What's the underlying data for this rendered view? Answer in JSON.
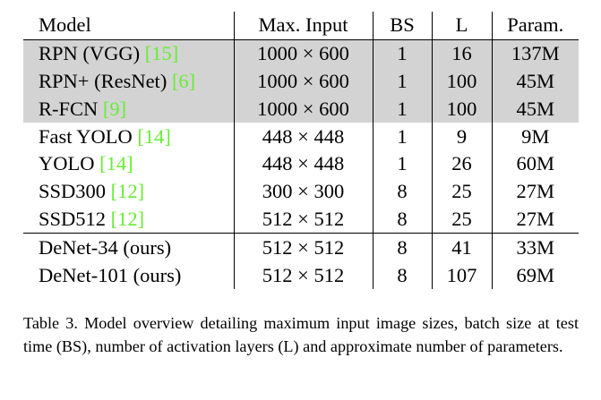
{
  "table": {
    "headers": {
      "model": "Model",
      "max_input": "Max. Input",
      "bs": "BS",
      "l": "L",
      "param": "Param."
    },
    "rows": [
      {
        "name": "RPN (VGG) ",
        "cite": "[15]",
        "max_input": "1000 × 600",
        "bs": "1",
        "l": "16",
        "param": "137M"
      },
      {
        "name": "RPN+ (ResNet) ",
        "cite": "[6]",
        "max_input": "1000 × 600",
        "bs": "1",
        "l": "100",
        "param": "45M"
      },
      {
        "name": "R-FCN ",
        "cite": "[9]",
        "max_input": "1000 × 600",
        "bs": "1",
        "l": "100",
        "param": "45M"
      },
      {
        "name": "Fast YOLO ",
        "cite": "[14]",
        "max_input": "448 × 448",
        "bs": "1",
        "l": "9",
        "param": "9M"
      },
      {
        "name": "YOLO ",
        "cite": "[14]",
        "max_input": "448 × 448",
        "bs": "1",
        "l": "26",
        "param": "60M"
      },
      {
        "name": "SSD300 ",
        "cite": "[12]",
        "max_input": "300 × 300",
        "bs": "8",
        "l": "25",
        "param": "27M"
      },
      {
        "name": "SSD512 ",
        "cite": "[12]",
        "max_input": "512 × 512",
        "bs": "8",
        "l": "25",
        "param": "27M"
      },
      {
        "name": "DeNet-34 (ours)",
        "cite": "",
        "max_input": "512 × 512",
        "bs": "8",
        "l": "41",
        "param": "33M"
      },
      {
        "name": "DeNet-101 (ours)",
        "cite": "",
        "max_input": "512 × 512",
        "bs": "8",
        "l": "107",
        "param": "69M"
      }
    ]
  },
  "caption": "Table 3. Model overview detailing maximum input image sizes, batch size at test time (BS), number of activation layers (L) and approximate number of parameters.",
  "colors": {
    "shade": "#d3d3d3",
    "citation": "#66ee33"
  }
}
